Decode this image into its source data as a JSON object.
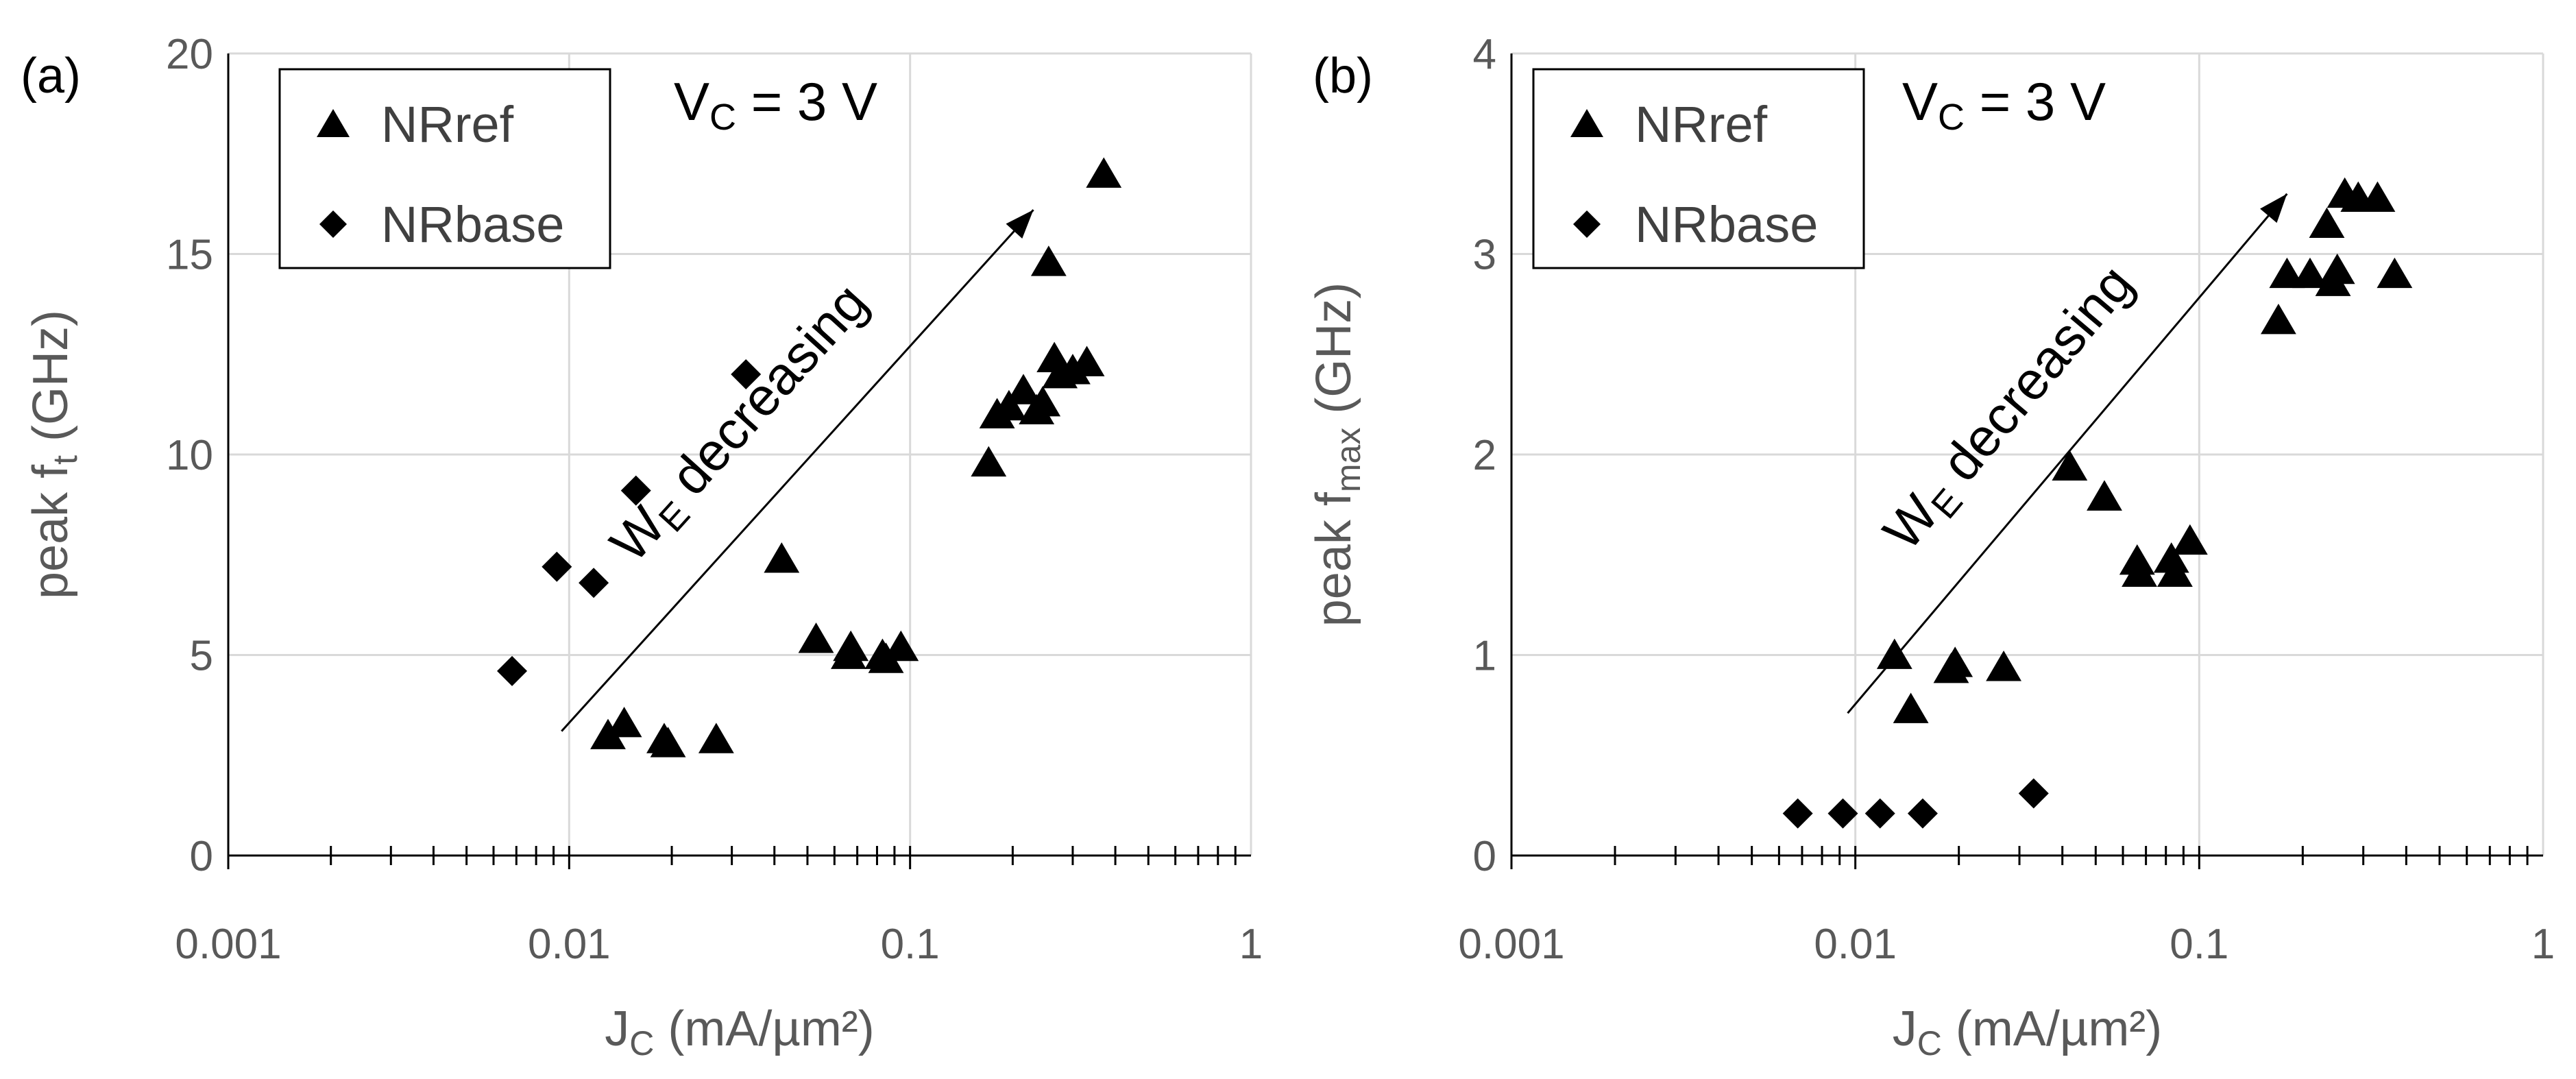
{
  "chart_data": [
    {
      "type": "scatter",
      "panel_label": "(a)",
      "xscale": "log",
      "xlim": [
        0.001,
        1
      ],
      "ylim": [
        0,
        20
      ],
      "xticks": [
        "0.001",
        "0.01",
        "0.1",
        "1"
      ],
      "yticks": [
        "0",
        "5",
        "10",
        "15",
        "20"
      ],
      "ytick_values": [
        0,
        5,
        10,
        15,
        20
      ],
      "xlabel": {
        "main": "J",
        "sub": "C",
        "rest": " (mA/µm²)"
      },
      "ylabel": {
        "main": "peak f",
        "sub": "t",
        "rest": " (GHz)"
      },
      "grid": true,
      "legend_position": "top-left",
      "condition": {
        "main": "V",
        "sub": "C",
        "rest": " = 3 V"
      },
      "arrow_label": {
        "main": "W",
        "sub": "E",
        "rest": " decreasing"
      },
      "arrow_from": [
        0.0095,
        3.1
      ],
      "arrow_to": [
        0.23,
        16.1
      ],
      "series": [
        {
          "name": "NRref",
          "marker": "triangle",
          "points": [
            [
              0.013,
              3.0
            ],
            [
              0.0145,
              3.3
            ],
            [
              0.019,
              2.9
            ],
            [
              0.0195,
              2.8
            ],
            [
              0.027,
              2.9
            ],
            [
              0.042,
              7.4
            ],
            [
              0.053,
              5.4
            ],
            [
              0.066,
              5.0
            ],
            [
              0.067,
              5.2
            ],
            [
              0.083,
              5.0
            ],
            [
              0.085,
              4.9
            ],
            [
              0.094,
              5.2
            ],
            [
              0.17,
              9.8
            ],
            [
              0.18,
              11.0
            ],
            [
              0.195,
              11.2
            ],
            [
              0.215,
              11.6
            ],
            [
              0.235,
              11.1
            ],
            [
              0.245,
              11.3
            ],
            [
              0.255,
              14.8
            ],
            [
              0.265,
              12.4
            ],
            [
              0.275,
              12.0
            ],
            [
              0.3,
              12.1
            ],
            [
              0.33,
              12.3
            ],
            [
              0.37,
              17.0
            ]
          ]
        },
        {
          "name": "NRbase",
          "marker": "diamond",
          "points": [
            [
              0.0068,
              4.6
            ],
            [
              0.0092,
              7.2
            ],
            [
              0.0118,
              6.8
            ],
            [
              0.0157,
              9.1
            ],
            [
              0.033,
              12.0
            ]
          ]
        }
      ]
    },
    {
      "type": "scatter",
      "panel_label": "(b)",
      "xscale": "log",
      "xlim": [
        0.001,
        1
      ],
      "ylim": [
        0,
        4
      ],
      "xticks": [
        "0.001",
        "0.01",
        "0.1",
        "1"
      ],
      "yticks": [
        "0",
        "1",
        "2",
        "3",
        "4"
      ],
      "ytick_values": [
        0,
        1,
        2,
        3,
        4
      ],
      "xlabel": {
        "main": "J",
        "sub": "C",
        "rest": " (mA/µm²)"
      },
      "ylabel": {
        "main": "peak f",
        "sub": "max",
        "rest": " (GHz)"
      },
      "grid": true,
      "legend_position": "top-left",
      "condition": {
        "main": "V",
        "sub": "C",
        "rest": " = 3 V"
      },
      "arrow_label": {
        "main": "W",
        "sub": "E",
        "rest": " decreasing"
      },
      "arrow_from": [
        0.0095,
        0.71
      ],
      "arrow_to": [
        0.18,
        3.3
      ],
      "series": [
        {
          "name": "NRref",
          "marker": "triangle",
          "points": [
            [
              0.013,
              1.0
            ],
            [
              0.0145,
              0.73
            ],
            [
              0.019,
              0.93
            ],
            [
              0.0195,
              0.96
            ],
            [
              0.027,
              0.94
            ],
            [
              0.042,
              1.94
            ],
            [
              0.053,
              1.79
            ],
            [
              0.066,
              1.47
            ],
            [
              0.067,
              1.41
            ],
            [
              0.083,
              1.48
            ],
            [
              0.085,
              1.41
            ],
            [
              0.094,
              1.57
            ],
            [
              0.17,
              2.67
            ],
            [
              0.18,
              2.9
            ],
            [
              0.21,
              2.9
            ],
            [
              0.235,
              3.15
            ],
            [
              0.245,
              2.86
            ],
            [
              0.252,
              2.92
            ],
            [
              0.265,
              3.3
            ],
            [
              0.29,
              3.28
            ],
            [
              0.33,
              3.28
            ],
            [
              0.37,
              2.9
            ]
          ]
        },
        {
          "name": "NRbase",
          "marker": "diamond",
          "points": [
            [
              0.0068,
              0.21
            ],
            [
              0.0092,
              0.21
            ],
            [
              0.0118,
              0.21
            ],
            [
              0.0157,
              0.21
            ],
            [
              0.033,
              0.31
            ]
          ]
        }
      ]
    }
  ]
}
